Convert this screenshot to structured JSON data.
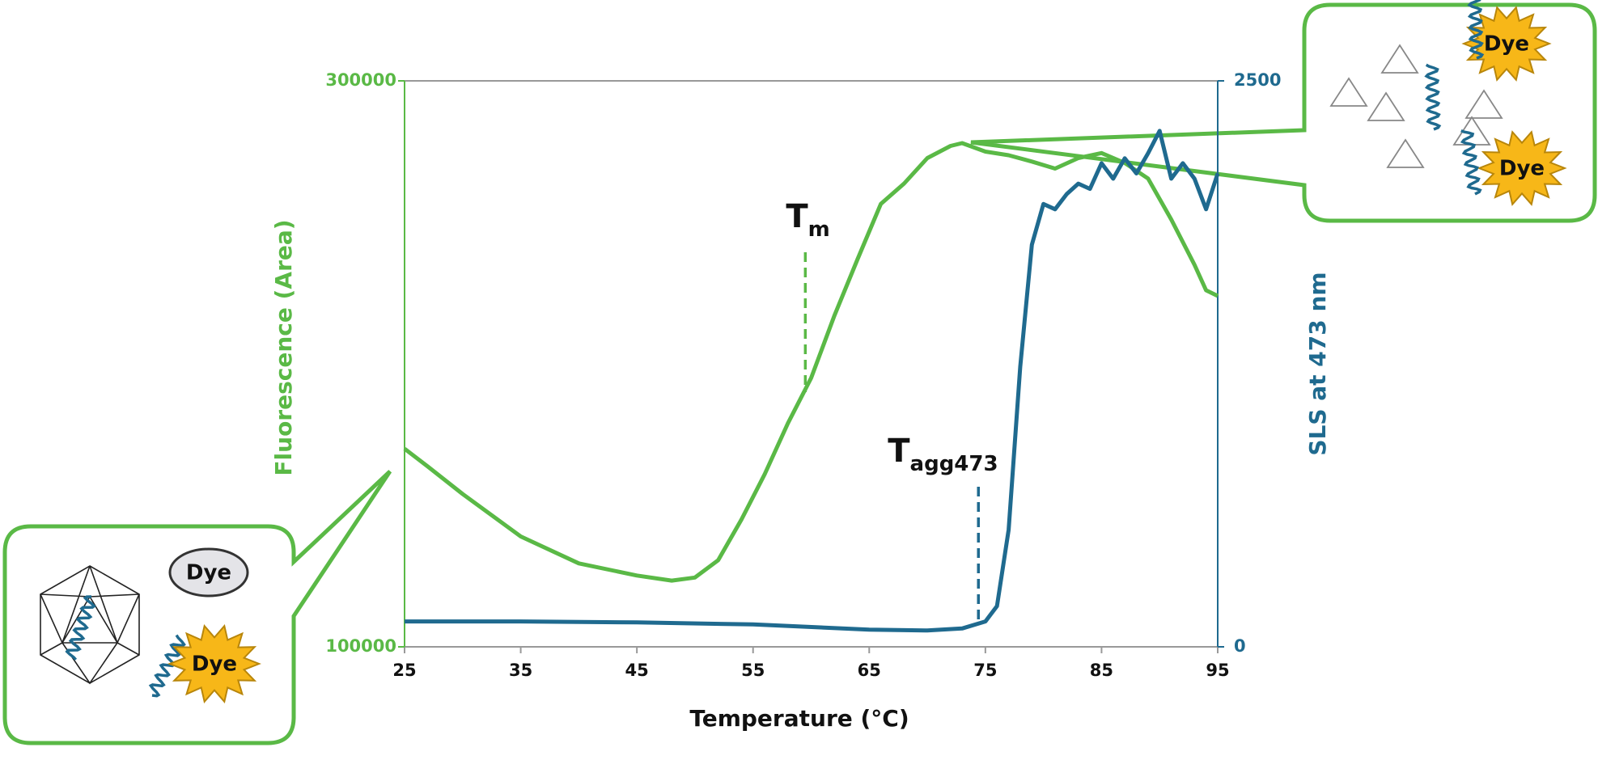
{
  "chart_data": {
    "type": "line",
    "x_label": "Temperature (°C)",
    "y_label": "Fluorescence (Area)",
    "y2_label": "SLS at 473 nm",
    "xlim": [
      25,
      95
    ],
    "xticks": [
      25,
      35,
      45,
      55,
      65,
      75,
      85,
      95
    ],
    "ylim": [
      100000,
      300000
    ],
    "yticks": [
      100000,
      300000
    ],
    "y2lim": [
      0,
      2500
    ],
    "y2ticks": [
      0,
      2500
    ],
    "series": [
      {
        "color": "#5ab946",
        "x": [
          25,
          27,
          30,
          35,
          40,
          45,
          48,
          50,
          52,
          54,
          56,
          58,
          60,
          62,
          64,
          66,
          68,
          70,
          72,
          73,
          75,
          77,
          79,
          81,
          83,
          85,
          87,
          89,
          91,
          93,
          94,
          95
        ],
        "values": [
          170000,
          163700,
          154000,
          139000,
          129500,
          125200,
          123400,
          124500,
          130600,
          145000,
          161000,
          179000,
          195000,
          217000,
          237000,
          256500,
          263700,
          272700,
          277000,
          278000,
          275000,
          273700,
          271500,
          269000,
          272700,
          274500,
          271000,
          265500,
          251000,
          235000,
          226000,
          224000
        ]
      },
      {
        "color": "#1f6a8f",
        "axis": "y2",
        "x": [
          25,
          35,
          45,
          55,
          65,
          70,
          73,
          75,
          76,
          77,
          78,
          79,
          80,
          81,
          82,
          83,
          84,
          85,
          86,
          87,
          88,
          89,
          90,
          91,
          92,
          93,
          94,
          95
        ],
        "values": [
          112,
          112,
          108,
          99,
          76,
          72,
          81,
          112,
          180,
          517,
          1236,
          1776,
          1956,
          1933,
          2000,
          2046,
          2023,
          2136,
          2068,
          2158,
          2091,
          2180,
          2279,
          2068,
          2136,
          2068,
          1933,
          2091
        ]
      }
    ],
    "annotations": [
      {
        "text": "T",
        "subscript": "m",
        "x": 59.5,
        "color": "#5ab946"
      },
      {
        "text": "T",
        "subscript": "agg473",
        "x": 74.4,
        "color": "#1f6a8f"
      }
    ],
    "callout_labels": [
      "Dye",
      "Dye",
      "Dye",
      "Dye"
    ]
  }
}
